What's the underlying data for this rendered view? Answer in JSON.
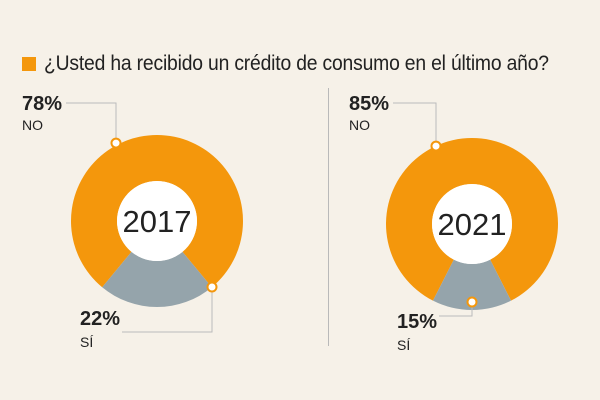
{
  "title": "¿Usted ha recibido un crédito de consumo en el último año?",
  "colors": {
    "no": "#f4970c",
    "si": "#95a4ab",
    "background": "#f6f1e8",
    "leader": "#bbbbbb"
  },
  "chart_data": [
    {
      "type": "pie",
      "center_label": "2017",
      "slices": [
        {
          "label": "NO",
          "value": 78,
          "value_label": "78%"
        },
        {
          "label": "SÍ",
          "value": 22,
          "value_label": "22%"
        }
      ]
    },
    {
      "type": "pie",
      "center_label": "2021",
      "slices": [
        {
          "label": "NO",
          "value": 85,
          "value_label": "85%"
        },
        {
          "label": "SÍ",
          "value": 15,
          "value_label": "15%"
        }
      ]
    }
  ]
}
